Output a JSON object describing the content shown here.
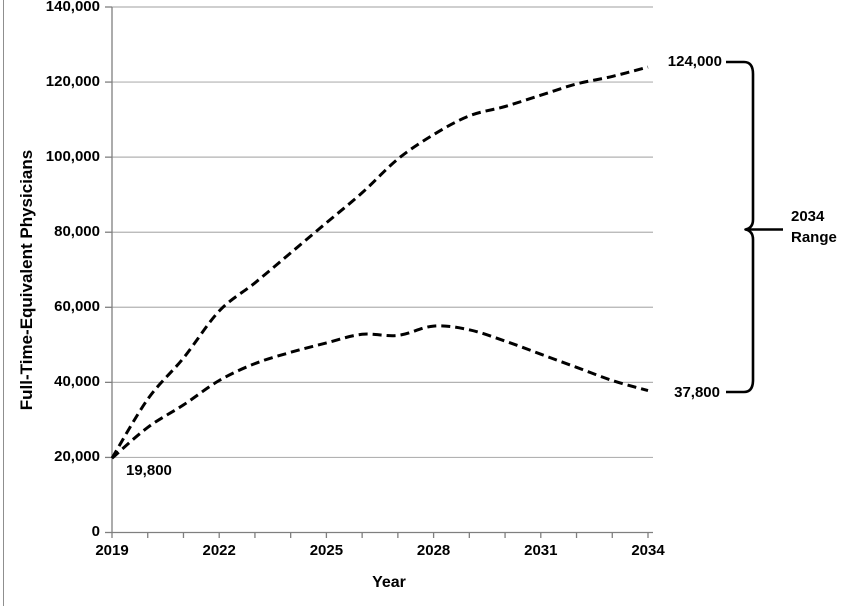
{
  "chart_data": {
    "type": "line",
    "title": "",
    "xlabel": "Year",
    "ylabel": "Full-Time-Equivalent Physicians",
    "xlim": [
      2019,
      2034
    ],
    "ylim": [
      0,
      140000
    ],
    "grid": true,
    "legend": false,
    "x": [
      2019,
      2020,
      2021,
      2022,
      2023,
      2024,
      2025,
      2026,
      2027,
      2028,
      2029,
      2030,
      2031,
      2032,
      2033,
      2034
    ],
    "x_ticks": [
      {
        "year": 2019,
        "label": "2019"
      },
      {
        "year": 2022,
        "label": "2022"
      },
      {
        "year": 2025,
        "label": "2025"
      },
      {
        "year": 2028,
        "label": "2028"
      },
      {
        "year": 2031,
        "label": "2031"
      },
      {
        "year": 2034,
        "label": "2034"
      }
    ],
    "y_ticks": [
      {
        "value": 0,
        "label": "0"
      },
      {
        "value": 20000,
        "label": "20,000"
      },
      {
        "value": 40000,
        "label": "40,000"
      },
      {
        "value": 60000,
        "label": "60,000"
      },
      {
        "value": 80000,
        "label": "80,000"
      },
      {
        "value": 100000,
        "label": "100,000"
      },
      {
        "value": 120000,
        "label": "120,000"
      },
      {
        "value": 140000,
        "label": "140,000"
      }
    ],
    "series": [
      {
        "name": "upper-dashed-projection",
        "line_style": "dashed",
        "color": "#000000",
        "start_value": 19800,
        "end_value": 124000,
        "values": [
          19800,
          35500,
          46500,
          59000,
          66500,
          74500,
          82500,
          90500,
          99500,
          106000,
          111000,
          113500,
          116500,
          119500,
          121500,
          124000
        ]
      },
      {
        "name": "lower-dashed-projection",
        "line_style": "dashed",
        "color": "#000000",
        "start_value": 19800,
        "end_value": 37800,
        "values": [
          19800,
          28000,
          34000,
          40500,
          45000,
          48000,
          50500,
          52800,
          52500,
          55000,
          54000,
          51000,
          47500,
          44000,
          40500,
          37800
        ]
      }
    ],
    "annotations": {
      "start_value": "19,800",
      "upper_end_value": "124,000",
      "lower_end_value": "37,800",
      "range_label_line1": "2034",
      "range_label_line2": "Range"
    }
  },
  "style": {
    "background": "#ffffff",
    "grid_color": "#b2b2b2",
    "axis_color": "#7f7f7f",
    "line_color": "#000000",
    "text_color": "#000000",
    "left_border_color": "#8f8f8f"
  }
}
